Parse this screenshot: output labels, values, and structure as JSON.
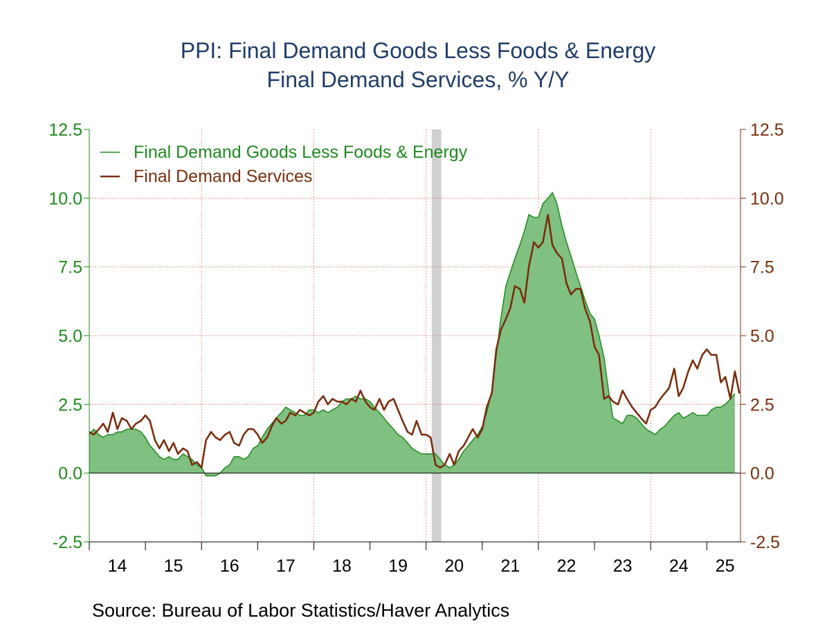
{
  "title_line1": "PPI: Final Demand Goods Less Foods & Energy",
  "title_line2": "Final Demand Services, % Y/Y",
  "source": "Source:  Bureau of Labor Statistics/Haver Analytics",
  "chart_data": {
    "type": "area",
    "y_left": {
      "min": -2.5,
      "max": 12.5,
      "ticks": [
        "12.5",
        "10.0",
        "7.5",
        "5.0",
        "2.5",
        "0.0",
        "-2.5"
      ],
      "color": "#1e8a1e"
    },
    "y_right": {
      "min": -2.5,
      "max": 12.5,
      "ticks": [
        "12.5",
        "10.0",
        "7.5",
        "5.0",
        "2.5",
        "0.0",
        "-2.5"
      ],
      "color": "#7a2e0e"
    },
    "x_categories": [
      "14",
      "15",
      "16",
      "17",
      "18",
      "19",
      "20",
      "21",
      "22",
      "23",
      "24",
      "25"
    ],
    "x_start": 2014.0,
    "x_end": 2025.6,
    "recession": {
      "start": 2020.1,
      "end": 2020.27,
      "color": "#d0d0d0"
    },
    "legend": {
      "position": "top-left",
      "entries": [
        "Final Demand Goods Less Foods & Energy",
        "Final Demand Services"
      ]
    },
    "grid": true,
    "series": [
      {
        "name": "Final Demand Goods Less Foods & Energy",
        "style": "area",
        "color": "#1e8a1e",
        "fill": "#80c080",
        "points": [
          [
            2014.0,
            1.4
          ],
          [
            2014.08,
            1.6
          ],
          [
            2014.17,
            1.4
          ],
          [
            2014.25,
            1.3
          ],
          [
            2014.33,
            1.4
          ],
          [
            2014.42,
            1.4
          ],
          [
            2014.5,
            1.5
          ],
          [
            2014.58,
            1.5
          ],
          [
            2014.67,
            1.6
          ],
          [
            2014.75,
            1.6
          ],
          [
            2014.83,
            1.6
          ],
          [
            2014.92,
            1.5
          ],
          [
            2015.0,
            1.3
          ],
          [
            2015.08,
            1.0
          ],
          [
            2015.17,
            0.8
          ],
          [
            2015.25,
            0.6
          ],
          [
            2015.33,
            0.5
          ],
          [
            2015.42,
            0.6
          ],
          [
            2015.5,
            0.5
          ],
          [
            2015.58,
            0.5
          ],
          [
            2015.67,
            0.7
          ],
          [
            2015.75,
            0.6
          ],
          [
            2015.83,
            0.5
          ],
          [
            2015.92,
            0.3
          ],
          [
            2016.0,
            0.2
          ],
          [
            2016.08,
            -0.1
          ],
          [
            2016.17,
            -0.1
          ],
          [
            2016.25,
            -0.1
          ],
          [
            2016.33,
            0.0
          ],
          [
            2016.42,
            0.2
          ],
          [
            2016.5,
            0.3
          ],
          [
            2016.58,
            0.6
          ],
          [
            2016.67,
            0.6
          ],
          [
            2016.75,
            0.5
          ],
          [
            2016.83,
            0.6
          ],
          [
            2016.92,
            0.9
          ],
          [
            2017.0,
            1.0
          ],
          [
            2017.08,
            1.3
          ],
          [
            2017.17,
            1.6
          ],
          [
            2017.25,
            1.8
          ],
          [
            2017.33,
            2.0
          ],
          [
            2017.42,
            2.2
          ],
          [
            2017.5,
            2.4
          ],
          [
            2017.58,
            2.3
          ],
          [
            2017.67,
            2.2
          ],
          [
            2017.75,
            2.1
          ],
          [
            2017.83,
            2.1
          ],
          [
            2017.92,
            2.3
          ],
          [
            2018.0,
            2.3
          ],
          [
            2018.08,
            2.2
          ],
          [
            2018.17,
            2.3
          ],
          [
            2018.25,
            2.2
          ],
          [
            2018.33,
            2.3
          ],
          [
            2018.42,
            2.4
          ],
          [
            2018.5,
            2.6
          ],
          [
            2018.58,
            2.7
          ],
          [
            2018.67,
            2.7
          ],
          [
            2018.75,
            2.8
          ],
          [
            2018.83,
            2.7
          ],
          [
            2018.92,
            2.7
          ],
          [
            2019.0,
            2.6
          ],
          [
            2019.08,
            2.4
          ],
          [
            2019.17,
            2.2
          ],
          [
            2019.25,
            2.0
          ],
          [
            2019.33,
            1.8
          ],
          [
            2019.42,
            1.6
          ],
          [
            2019.5,
            1.4
          ],
          [
            2019.58,
            1.3
          ],
          [
            2019.67,
            1.1
          ],
          [
            2019.75,
            0.9
          ],
          [
            2019.83,
            0.8
          ],
          [
            2019.92,
            0.7
          ],
          [
            2020.0,
            0.7
          ],
          [
            2020.08,
            0.7
          ],
          [
            2020.17,
            0.7
          ],
          [
            2020.25,
            0.5
          ],
          [
            2020.33,
            0.3
          ],
          [
            2020.42,
            0.2
          ],
          [
            2020.5,
            0.3
          ],
          [
            2020.58,
            0.5
          ],
          [
            2020.67,
            0.8
          ],
          [
            2020.75,
            1.0
          ],
          [
            2020.83,
            1.2
          ],
          [
            2020.92,
            1.4
          ],
          [
            2021.0,
            1.7
          ],
          [
            2021.08,
            2.2
          ],
          [
            2021.17,
            3.0
          ],
          [
            2021.25,
            4.3
          ],
          [
            2021.33,
            5.6
          ],
          [
            2021.42,
            6.8
          ],
          [
            2021.5,
            7.3
          ],
          [
            2021.58,
            7.8
          ],
          [
            2021.67,
            8.3
          ],
          [
            2021.75,
            8.8
          ],
          [
            2021.83,
            9.4
          ],
          [
            2021.92,
            9.3
          ],
          [
            2022.0,
            9.3
          ],
          [
            2022.08,
            9.8
          ],
          [
            2022.17,
            10.0
          ],
          [
            2022.25,
            10.2
          ],
          [
            2022.33,
            9.8
          ],
          [
            2022.42,
            9.0
          ],
          [
            2022.5,
            8.4
          ],
          [
            2022.58,
            7.9
          ],
          [
            2022.67,
            7.3
          ],
          [
            2022.75,
            6.8
          ],
          [
            2022.83,
            6.3
          ],
          [
            2022.92,
            5.8
          ],
          [
            2023.0,
            5.6
          ],
          [
            2023.08,
            5.0
          ],
          [
            2023.17,
            4.2
          ],
          [
            2023.25,
            3.0
          ],
          [
            2023.33,
            2.0
          ],
          [
            2023.42,
            1.9
          ],
          [
            2023.5,
            1.8
          ],
          [
            2023.58,
            2.1
          ],
          [
            2023.67,
            2.1
          ],
          [
            2023.75,
            2.0
          ],
          [
            2023.83,
            1.8
          ],
          [
            2023.92,
            1.6
          ],
          [
            2024.0,
            1.5
          ],
          [
            2024.08,
            1.4
          ],
          [
            2024.17,
            1.6
          ],
          [
            2024.25,
            1.7
          ],
          [
            2024.33,
            1.9
          ],
          [
            2024.42,
            2.1
          ],
          [
            2024.5,
            2.2
          ],
          [
            2024.58,
            2.0
          ],
          [
            2024.67,
            2.1
          ],
          [
            2024.75,
            2.2
          ],
          [
            2024.83,
            2.1
          ],
          [
            2024.92,
            2.1
          ],
          [
            2025.0,
            2.1
          ],
          [
            2025.08,
            2.3
          ],
          [
            2025.17,
            2.4
          ],
          [
            2025.25,
            2.4
          ],
          [
            2025.33,
            2.5
          ],
          [
            2025.42,
            2.7
          ],
          [
            2025.5,
            2.9
          ]
        ]
      },
      {
        "name": "Final Demand Services",
        "style": "line",
        "color": "#7a2e0e",
        "points": [
          [
            2014.0,
            1.5
          ],
          [
            2014.08,
            1.4
          ],
          [
            2014.17,
            1.6
          ],
          [
            2014.25,
            1.8
          ],
          [
            2014.33,
            1.5
          ],
          [
            2014.42,
            2.2
          ],
          [
            2014.5,
            1.6
          ],
          [
            2014.58,
            2.0
          ],
          [
            2014.67,
            1.9
          ],
          [
            2014.75,
            1.6
          ],
          [
            2014.83,
            1.8
          ],
          [
            2014.92,
            1.9
          ],
          [
            2015.0,
            2.1
          ],
          [
            2015.08,
            1.9
          ],
          [
            2015.17,
            1.2
          ],
          [
            2015.25,
            0.9
          ],
          [
            2015.33,
            1.2
          ],
          [
            2015.42,
            0.8
          ],
          [
            2015.5,
            1.1
          ],
          [
            2015.58,
            0.7
          ],
          [
            2015.67,
            0.9
          ],
          [
            2015.75,
            0.8
          ],
          [
            2015.83,
            0.3
          ],
          [
            2015.92,
            0.4
          ],
          [
            2016.0,
            0.2
          ],
          [
            2016.08,
            1.2
          ],
          [
            2016.17,
            1.5
          ],
          [
            2016.25,
            1.3
          ],
          [
            2016.33,
            1.2
          ],
          [
            2016.42,
            1.4
          ],
          [
            2016.5,
            1.5
          ],
          [
            2016.58,
            1.1
          ],
          [
            2016.67,
            1.0
          ],
          [
            2016.75,
            1.4
          ],
          [
            2016.83,
            1.6
          ],
          [
            2016.92,
            1.6
          ],
          [
            2017.0,
            1.4
          ],
          [
            2017.08,
            1.1
          ],
          [
            2017.17,
            1.3
          ],
          [
            2017.25,
            1.7
          ],
          [
            2017.33,
            2.0
          ],
          [
            2017.42,
            1.8
          ],
          [
            2017.5,
            1.9
          ],
          [
            2017.58,
            2.2
          ],
          [
            2017.67,
            2.1
          ],
          [
            2017.75,
            2.3
          ],
          [
            2017.83,
            2.2
          ],
          [
            2017.92,
            2.1
          ],
          [
            2018.0,
            2.2
          ],
          [
            2018.08,
            2.6
          ],
          [
            2018.17,
            2.8
          ],
          [
            2018.25,
            2.5
          ],
          [
            2018.33,
            2.7
          ],
          [
            2018.42,
            2.6
          ],
          [
            2018.5,
            2.6
          ],
          [
            2018.58,
            2.5
          ],
          [
            2018.67,
            2.7
          ],
          [
            2018.75,
            2.6
          ],
          [
            2018.83,
            3.0
          ],
          [
            2018.92,
            2.6
          ],
          [
            2019.0,
            2.4
          ],
          [
            2019.08,
            2.3
          ],
          [
            2019.17,
            2.7
          ],
          [
            2019.25,
            2.3
          ],
          [
            2019.33,
            2.6
          ],
          [
            2019.42,
            2.7
          ],
          [
            2019.5,
            2.3
          ],
          [
            2019.58,
            1.9
          ],
          [
            2019.67,
            1.5
          ],
          [
            2019.75,
            1.4
          ],
          [
            2019.83,
            1.9
          ],
          [
            2019.92,
            1.4
          ],
          [
            2020.0,
            1.4
          ],
          [
            2020.08,
            1.3
          ],
          [
            2020.17,
            0.3
          ],
          [
            2020.25,
            0.2
          ],
          [
            2020.33,
            0.3
          ],
          [
            2020.42,
            0.7
          ],
          [
            2020.5,
            0.3
          ],
          [
            2020.58,
            0.8
          ],
          [
            2020.67,
            1.0
          ],
          [
            2020.75,
            1.3
          ],
          [
            2020.83,
            1.6
          ],
          [
            2020.92,
            1.3
          ],
          [
            2021.0,
            1.6
          ],
          [
            2021.08,
            2.4
          ],
          [
            2021.17,
            2.9
          ],
          [
            2021.25,
            4.5
          ],
          [
            2021.33,
            5.2
          ],
          [
            2021.42,
            5.6
          ],
          [
            2021.5,
            6.0
          ],
          [
            2021.58,
            6.8
          ],
          [
            2021.67,
            6.7
          ],
          [
            2021.75,
            6.2
          ],
          [
            2021.83,
            7.5
          ],
          [
            2021.92,
            8.4
          ],
          [
            2022.0,
            8.2
          ],
          [
            2022.08,
            8.4
          ],
          [
            2022.17,
            9.4
          ],
          [
            2022.25,
            8.3
          ],
          [
            2022.33,
            8.0
          ],
          [
            2022.42,
            7.8
          ],
          [
            2022.5,
            6.9
          ],
          [
            2022.58,
            6.5
          ],
          [
            2022.67,
            6.7
          ],
          [
            2022.75,
            6.7
          ],
          [
            2022.83,
            6.0
          ],
          [
            2022.92,
            5.5
          ],
          [
            2023.0,
            4.6
          ],
          [
            2023.08,
            4.3
          ],
          [
            2023.17,
            2.7
          ],
          [
            2023.25,
            2.8
          ],
          [
            2023.33,
            2.6
          ],
          [
            2023.42,
            2.5
          ],
          [
            2023.5,
            3.0
          ],
          [
            2023.58,
            2.7
          ],
          [
            2023.67,
            2.4
          ],
          [
            2023.75,
            2.2
          ],
          [
            2023.83,
            2.0
          ],
          [
            2023.92,
            1.8
          ],
          [
            2024.0,
            2.3
          ],
          [
            2024.08,
            2.4
          ],
          [
            2024.17,
            2.7
          ],
          [
            2024.25,
            2.9
          ],
          [
            2024.33,
            3.1
          ],
          [
            2024.42,
            3.8
          ],
          [
            2024.5,
            2.8
          ],
          [
            2024.58,
            3.1
          ],
          [
            2024.67,
            3.7
          ],
          [
            2024.75,
            4.1
          ],
          [
            2024.83,
            3.8
          ],
          [
            2024.92,
            4.3
          ],
          [
            2025.0,
            4.5
          ],
          [
            2025.08,
            4.3
          ],
          [
            2025.17,
            4.3
          ],
          [
            2025.25,
            3.3
          ],
          [
            2025.33,
            3.5
          ],
          [
            2025.42,
            2.7
          ],
          [
            2025.5,
            3.7
          ],
          [
            2025.58,
            2.9
          ]
        ]
      }
    ]
  }
}
